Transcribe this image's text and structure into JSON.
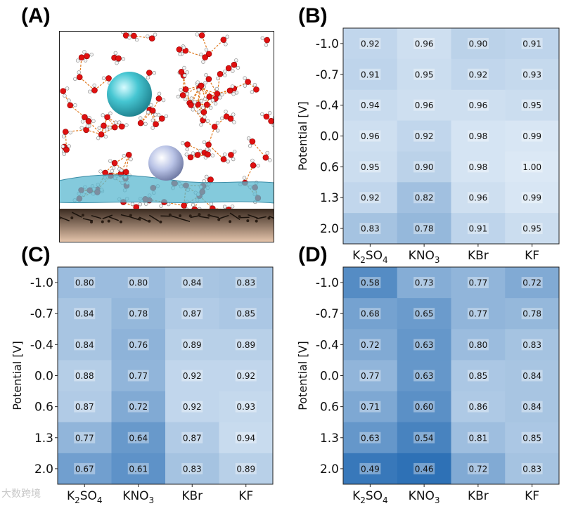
{
  "panel_labels": {
    "a": "(A)",
    "b": "(B)",
    "c": "(C)",
    "d": "(D)"
  },
  "watermark": "大数跨境",
  "colors": {
    "low": "#2b6fb5",
    "high": "#dbe8f5",
    "water": "#5bb8d0",
    "oxygen": "#e01010",
    "hydrogen": "#f2f2f2",
    "hbond": "#e07b20",
    "ion_cyan": "#46c6d2",
    "ion_silver": "#b9c3e6"
  },
  "chart_data": [
    {
      "type": "heatmap",
      "panel": "B",
      "ylabel": "Potential [V]",
      "x_categories": [
        [
          "K",
          "2",
          "SO",
          "4"
        ],
        [
          "KNO",
          "3"
        ],
        [
          "KBr"
        ],
        [
          "KF"
        ]
      ],
      "y_categories": [
        "-1.0",
        "-0.7",
        "-0.4",
        "0.0",
        "0.6",
        "1.3",
        "2.0"
      ],
      "values": [
        [
          0.92,
          0.96,
          0.9,
          0.91
        ],
        [
          0.91,
          0.95,
          0.92,
          0.93
        ],
        [
          0.94,
          0.96,
          0.96,
          0.95
        ],
        [
          0.96,
          0.92,
          0.98,
          0.99
        ],
        [
          0.95,
          0.9,
          0.98,
          1.0
        ],
        [
          0.92,
          0.82,
          0.96,
          0.99
        ],
        [
          0.83,
          0.78,
          0.91,
          0.95
        ]
      ],
      "labels": [
        [
          "0.92",
          "0.96",
          "0.90",
          "0.91"
        ],
        [
          "0.91",
          "0.95",
          "0.92",
          "0.93"
        ],
        [
          "0.94",
          "0.96",
          "0.96",
          "0.95"
        ],
        [
          "0.96",
          "0.92",
          "0.98",
          "0.99"
        ],
        [
          "0.95",
          "0.90",
          "0.98",
          "1.00"
        ],
        [
          "0.92",
          "0.82",
          "0.96",
          "0.99"
        ],
        [
          "0.83",
          "0.78",
          "0.91",
          "0.95"
        ]
      ]
    },
    {
      "type": "heatmap",
      "panel": "C",
      "ylabel": "Potential [V]",
      "x_categories": [
        [
          "K",
          "2",
          "SO",
          "4"
        ],
        [
          "KNO",
          "3"
        ],
        [
          "KBr"
        ],
        [
          "KF"
        ]
      ],
      "y_categories": [
        "-1.0",
        "-0.7",
        "-0.4",
        "0.0",
        "0.6",
        "1.3",
        "2.0"
      ],
      "values": [
        [
          0.8,
          0.8,
          0.84,
          0.83
        ],
        [
          0.84,
          0.78,
          0.87,
          0.85
        ],
        [
          0.84,
          0.76,
          0.89,
          0.89
        ],
        [
          0.88,
          0.77,
          0.92,
          0.92
        ],
        [
          0.87,
          0.72,
          0.92,
          0.93
        ],
        [
          0.77,
          0.64,
          0.87,
          0.94
        ],
        [
          0.67,
          0.61,
          0.83,
          0.89
        ]
      ],
      "labels": [
        [
          "0.80",
          "0.80",
          "0.84",
          "0.83"
        ],
        [
          "0.84",
          "0.78",
          "0.87",
          "0.85"
        ],
        [
          "0.84",
          "0.76",
          "0.89",
          "0.89"
        ],
        [
          "0.88",
          "0.77",
          "0.92",
          "0.92"
        ],
        [
          "0.87",
          "0.72",
          "0.92",
          "0.93"
        ],
        [
          "0.77",
          "0.64",
          "0.87",
          "0.94"
        ],
        [
          "0.67",
          "0.61",
          "0.83",
          "0.89"
        ]
      ]
    },
    {
      "type": "heatmap",
      "panel": "D",
      "ylabel": "Potential [V]",
      "x_categories": [
        [
          "K",
          "2",
          "SO",
          "4"
        ],
        [
          "KNO",
          "3"
        ],
        [
          "KBr"
        ],
        [
          "KF"
        ]
      ],
      "y_categories": [
        "-1.0",
        "-0.7",
        "-0.4",
        "0.0",
        "0.6",
        "1.3",
        "2.0"
      ],
      "values": [
        [
          0.58,
          0.73,
          0.77,
          0.72
        ],
        [
          0.68,
          0.65,
          0.77,
          0.78
        ],
        [
          0.72,
          0.63,
          0.8,
          0.83
        ],
        [
          0.77,
          0.63,
          0.85,
          0.84
        ],
        [
          0.71,
          0.6,
          0.86,
          0.84
        ],
        [
          0.63,
          0.54,
          0.81,
          0.85
        ],
        [
          0.49,
          0.46,
          0.72,
          0.83
        ]
      ],
      "labels": [
        [
          "0.58",
          "0.73",
          "0.77",
          "0.72"
        ],
        [
          "0.68",
          "0.65",
          "0.77",
          "0.78"
        ],
        [
          "0.72",
          "0.63",
          "0.80",
          "0.83"
        ],
        [
          "0.77",
          "0.63",
          "0.85",
          "0.84"
        ],
        [
          "0.71",
          "0.60",
          "0.86",
          "0.84"
        ],
        [
          "0.63",
          "0.54",
          "0.81",
          "0.85"
        ],
        [
          "0.49",
          "0.46",
          "0.72",
          "0.83"
        ]
      ]
    }
  ]
}
